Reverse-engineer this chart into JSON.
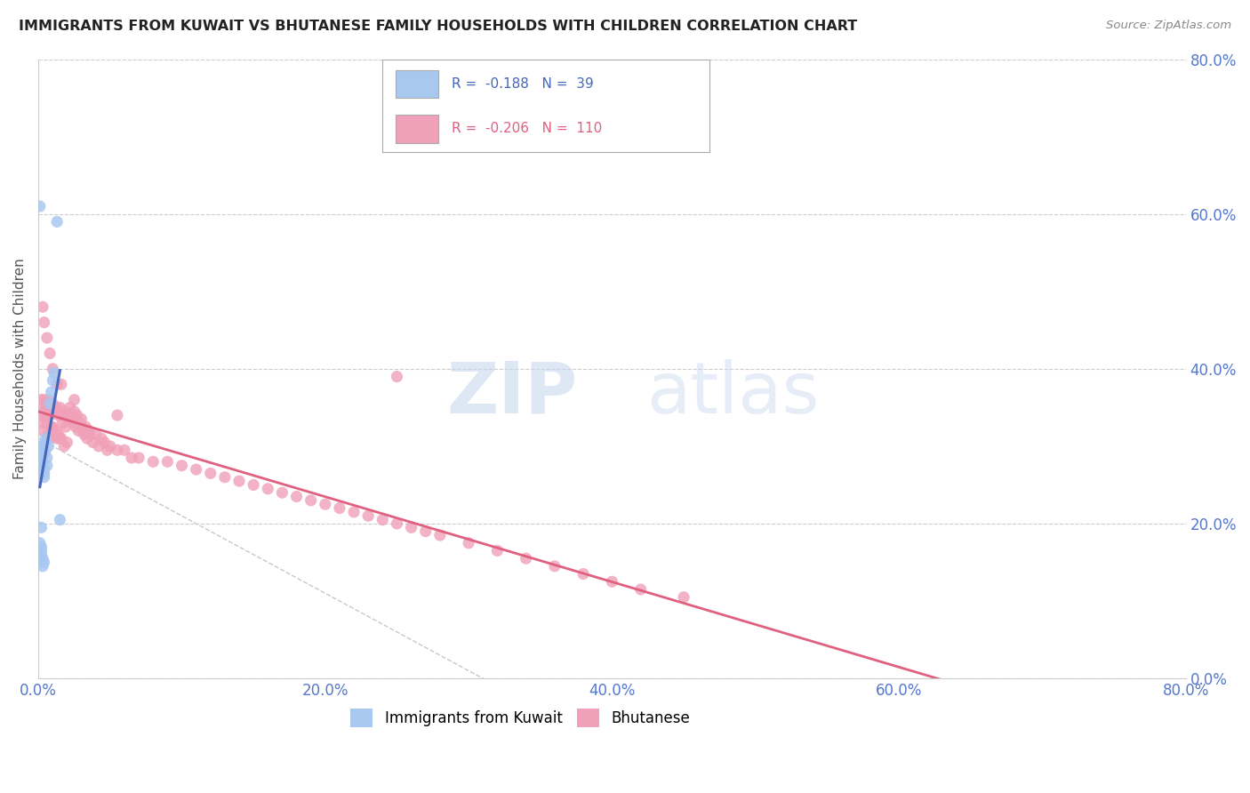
{
  "title": "IMMIGRANTS FROM KUWAIT VS BHUTANESE FAMILY HOUSEHOLDS WITH CHILDREN CORRELATION CHART",
  "source": "Source: ZipAtlas.com",
  "ylabel": "Family Households with Children",
  "legend_label1": "Immigrants from Kuwait",
  "legend_label2": "Bhutanese",
  "r1": -0.188,
  "n1": 39,
  "r2": -0.206,
  "n2": 110,
  "color1": "#a8c8f0",
  "color2": "#f0a0b8",
  "line_color1": "#4466bb",
  "line_color2": "#e06080",
  "watermark_zip": "ZIP",
  "watermark_atlas": "atlas",
  "xmin": 0.0,
  "xmax": 0.8,
  "ymin": 0.0,
  "ymax": 0.8,
  "background_color": "#ffffff",
  "kuwait_x": [
    0.001,
    0.001,
    0.001,
    0.001,
    0.002,
    0.002,
    0.002,
    0.002,
    0.002,
    0.002,
    0.002,
    0.002,
    0.002,
    0.003,
    0.003,
    0.003,
    0.003,
    0.003,
    0.003,
    0.003,
    0.003,
    0.004,
    0.004,
    0.004,
    0.004,
    0.005,
    0.005,
    0.005,
    0.006,
    0.006,
    0.007,
    0.008,
    0.009,
    0.01,
    0.011,
    0.013,
    0.001,
    0.002,
    0.015
  ],
  "kuwait_y": [
    0.275,
    0.27,
    0.265,
    0.175,
    0.28,
    0.285,
    0.29,
    0.295,
    0.3,
    0.265,
    0.17,
    0.165,
    0.16,
    0.28,
    0.285,
    0.29,
    0.295,
    0.275,
    0.265,
    0.155,
    0.145,
    0.27,
    0.265,
    0.26,
    0.15,
    0.31,
    0.305,
    0.295,
    0.285,
    0.275,
    0.3,
    0.355,
    0.37,
    0.385,
    0.395,
    0.59,
    0.61,
    0.195,
    0.205
  ],
  "bhutanese_x": [
    0.002,
    0.002,
    0.002,
    0.003,
    0.003,
    0.003,
    0.003,
    0.004,
    0.004,
    0.004,
    0.004,
    0.005,
    0.005,
    0.005,
    0.006,
    0.006,
    0.007,
    0.007,
    0.007,
    0.008,
    0.008,
    0.008,
    0.009,
    0.009,
    0.01,
    0.01,
    0.011,
    0.011,
    0.012,
    0.012,
    0.013,
    0.013,
    0.014,
    0.014,
    0.015,
    0.015,
    0.016,
    0.016,
    0.017,
    0.018,
    0.018,
    0.019,
    0.02,
    0.02,
    0.021,
    0.022,
    0.023,
    0.024,
    0.025,
    0.026,
    0.027,
    0.028,
    0.029,
    0.03,
    0.031,
    0.032,
    0.033,
    0.034,
    0.035,
    0.036,
    0.038,
    0.04,
    0.042,
    0.044,
    0.046,
    0.048,
    0.05,
    0.055,
    0.06,
    0.065,
    0.07,
    0.08,
    0.09,
    0.1,
    0.11,
    0.12,
    0.13,
    0.14,
    0.15,
    0.16,
    0.17,
    0.18,
    0.19,
    0.2,
    0.21,
    0.22,
    0.23,
    0.24,
    0.25,
    0.26,
    0.27,
    0.28,
    0.3,
    0.32,
    0.34,
    0.36,
    0.38,
    0.4,
    0.42,
    0.45,
    0.003,
    0.004,
    0.006,
    0.008,
    0.01,
    0.013,
    0.016,
    0.025,
    0.055,
    0.25
  ],
  "bhutanese_y": [
    0.36,
    0.34,
    0.28,
    0.35,
    0.34,
    0.32,
    0.295,
    0.36,
    0.345,
    0.33,
    0.29,
    0.355,
    0.34,
    0.305,
    0.35,
    0.33,
    0.36,
    0.345,
    0.315,
    0.355,
    0.34,
    0.31,
    0.35,
    0.325,
    0.355,
    0.325,
    0.345,
    0.315,
    0.35,
    0.32,
    0.345,
    0.31,
    0.34,
    0.315,
    0.35,
    0.31,
    0.34,
    0.31,
    0.33,
    0.345,
    0.3,
    0.325,
    0.34,
    0.305,
    0.335,
    0.35,
    0.34,
    0.33,
    0.345,
    0.325,
    0.34,
    0.32,
    0.33,
    0.335,
    0.32,
    0.315,
    0.325,
    0.31,
    0.32,
    0.315,
    0.305,
    0.315,
    0.3,
    0.31,
    0.305,
    0.295,
    0.3,
    0.295,
    0.295,
    0.285,
    0.285,
    0.28,
    0.28,
    0.275,
    0.27,
    0.265,
    0.26,
    0.255,
    0.25,
    0.245,
    0.24,
    0.235,
    0.23,
    0.225,
    0.22,
    0.215,
    0.21,
    0.205,
    0.2,
    0.195,
    0.19,
    0.185,
    0.175,
    0.165,
    0.155,
    0.145,
    0.135,
    0.125,
    0.115,
    0.105,
    0.48,
    0.46,
    0.44,
    0.42,
    0.4,
    0.38,
    0.38,
    0.36,
    0.34,
    0.39
  ]
}
